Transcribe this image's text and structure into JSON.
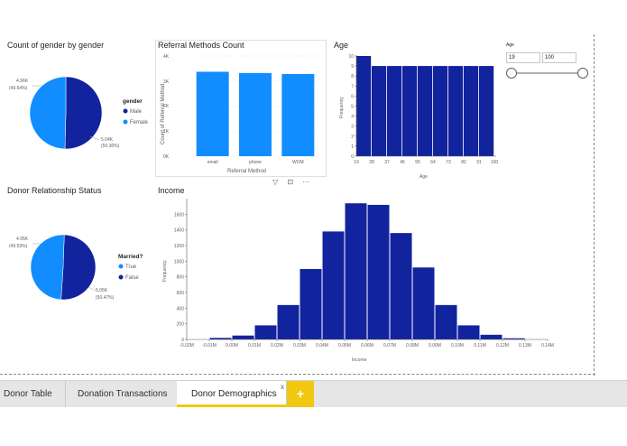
{
  "gender_chart": {
    "title": "Count of gender by gender",
    "legend_title": "gender",
    "legend_items": [
      "Male",
      "Female"
    ],
    "label_female": [
      "4.96K",
      "(49.64%)"
    ],
    "label_male": [
      "5.04K",
      "(50.36%)"
    ],
    "colors": {
      "male": "#12239e",
      "female": "#118dff"
    }
  },
  "referral_chart": {
    "title": "Referral Methods Count",
    "ylabel": "Count of Referral Method",
    "xlabel": "Referral Method",
    "yticks": [
      "4K",
      "3K",
      "2K",
      "1K",
      "0K"
    ]
  },
  "age_chart": {
    "title": "Age",
    "ylabel": "Frequency",
    "xlabel": "Age",
    "yticks": [
      "10",
      "9",
      "8",
      "7",
      "6",
      "5",
      "4",
      "3",
      "2",
      "1",
      "0"
    ],
    "xticks": [
      "19",
      "28",
      "37",
      "46",
      "55",
      "64",
      "73",
      "82",
      "91",
      "100"
    ]
  },
  "age_slicer": {
    "label": "Age",
    "min_value": "19",
    "max_value": "100"
  },
  "relationship_chart": {
    "title": "Donor Relationship Status",
    "legend_title": "Married?",
    "legend_items": [
      "True",
      "False"
    ],
    "label_true": [
      "4.95K",
      "(49.53%)"
    ],
    "label_false": [
      "5.05K",
      "(50.47%)"
    ],
    "colors": {
      "true": "#118dff",
      "false": "#12239e"
    }
  },
  "income_chart": {
    "title": "Income",
    "ylabel": "Frequency",
    "xlabel": "Income",
    "yticks": [
      "1600",
      "1400",
      "1200",
      "1000",
      "800",
      "600",
      "400",
      "200",
      "0"
    ],
    "xticks": [
      "-0.02M",
      "-0.01M",
      "0.00M",
      "0.01M",
      "0.02M",
      "0.03M",
      "0.04M",
      "0.05M",
      "0.06M",
      "0.07M",
      "0.08M",
      "0.09M",
      "0.10M",
      "0.11M",
      "0.12M",
      "0.13M",
      "0.14M"
    ]
  },
  "tabs": [
    {
      "label": "Donor Table"
    },
    {
      "label": "Donation Transactions"
    },
    {
      "label": "Donor Demographics"
    }
  ],
  "add_tab_label": "+",
  "close_tab_glyph": "x",
  "visual_icons": [
    "filter-icon",
    "focus-mode-icon",
    "more-options-icon"
  ],
  "chart_data": [
    {
      "type": "pie",
      "title": "Count of gender by gender",
      "categories": [
        "Male",
        "Female"
      ],
      "values": [
        5040,
        4960
      ],
      "percentages": [
        50.36,
        49.64
      ]
    },
    {
      "type": "bar",
      "title": "Referral Methods Count",
      "categories": [
        "email",
        "phone",
        "WOM"
      ],
      "values": [
        3370,
        3320,
        3280
      ],
      "xlabel": "Referral Method",
      "ylabel": "Count of Referral Method",
      "ylim": [
        0,
        4000
      ]
    },
    {
      "type": "bar",
      "title": "Age",
      "bins": [
        "19-28",
        "28-37",
        "37-46",
        "46-55",
        "55-64",
        "64-73",
        "73-82",
        "82-91",
        "91-100"
      ],
      "categories": [
        "19",
        "28",
        "37",
        "46",
        "55",
        "64",
        "73",
        "82",
        "91"
      ],
      "values": [
        10,
        9,
        9,
        9,
        9,
        9,
        9,
        9,
        9
      ],
      "xlabel": "Age",
      "ylabel": "Frequency",
      "ylim": [
        0,
        10
      ]
    },
    {
      "type": "pie",
      "title": "Donor Relationship Status",
      "categories": [
        "True",
        "False"
      ],
      "values": [
        4950,
        5050
      ],
      "percentages": [
        49.53,
        50.47
      ]
    },
    {
      "type": "bar",
      "title": "Income",
      "bin_starts": [
        -0.01,
        0.0,
        0.01,
        0.02,
        0.03,
        0.04,
        0.05,
        0.06,
        0.07,
        0.08,
        0.09,
        0.1,
        0.11,
        0.12
      ],
      "values": [
        20,
        50,
        180,
        440,
        900,
        1380,
        1740,
        1720,
        1360,
        920,
        440,
        180,
        60,
        15
      ],
      "xlabel": "Income",
      "ylabel": "Frequency",
      "ylim": [
        0,
        1800
      ],
      "xlim": [
        -0.02,
        0.14
      ]
    }
  ]
}
